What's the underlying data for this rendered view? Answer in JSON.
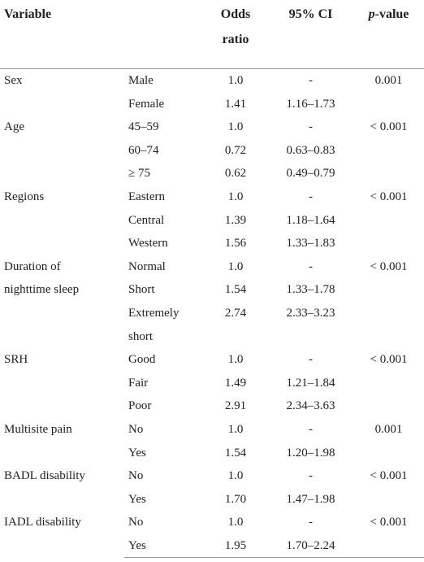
{
  "header": {
    "variable": "Variable",
    "odds_ratio": "Odds ratio",
    "ci": "95% CI",
    "p_value": "p-value"
  },
  "groups": [
    {
      "variable": "Sex",
      "rows": [
        {
          "level": "Male",
          "odds_ratio": "1.0",
          "ci": "-",
          "p": "0.001"
        },
        {
          "level": "Female",
          "odds_ratio": "1.41",
          "ci": "1.16–1.73"
        }
      ]
    },
    {
      "variable": "Age",
      "rows": [
        {
          "level": "45–59",
          "odds_ratio": "1.0",
          "ci": "-",
          "p": "< 0.001"
        },
        {
          "level": "60–74",
          "odds_ratio": "0.72",
          "ci": "0.63–0.83"
        },
        {
          "level": "≥ 75",
          "odds_ratio": "0.62",
          "ci": "0.49–0.79"
        }
      ]
    },
    {
      "variable": "Regions",
      "rows": [
        {
          "level": "Eastern",
          "odds_ratio": "1.0",
          "ci": "-",
          "p": "< 0.001"
        },
        {
          "level": "Central",
          "odds_ratio": "1.39",
          "ci": "1.18–1.64"
        },
        {
          "level": "Western",
          "odds_ratio": "1.56",
          "ci": "1.33–1.83"
        }
      ]
    },
    {
      "variable": "Duration of nighttime sleep",
      "rows": [
        {
          "level": "Normal",
          "odds_ratio": "1.0",
          "ci": "-",
          "p": "< 0.001"
        },
        {
          "level": "Short",
          "odds_ratio": "1.54",
          "ci": "1.33–1.78"
        },
        {
          "level": "Extremely short",
          "odds_ratio": "2.74",
          "ci": "2.33–3.23"
        }
      ]
    },
    {
      "variable": "SRH",
      "rows": [
        {
          "level": "Good",
          "odds_ratio": "1.0",
          "ci": "-",
          "p": "< 0.001"
        },
        {
          "level": "Fair",
          "odds_ratio": "1.49",
          "ci": "1.21–1.84"
        },
        {
          "level": "Poor",
          "odds_ratio": "2.91",
          "ci": "2.34–3.63"
        }
      ]
    },
    {
      "variable": "Multisite pain",
      "rows": [
        {
          "level": "No",
          "odds_ratio": "1.0",
          "ci": "-",
          "p": "0.001"
        },
        {
          "level": "Yes",
          "odds_ratio": "1.54",
          "ci": "1.20–1.98"
        }
      ]
    },
    {
      "variable": "BADL disability",
      "rows": [
        {
          "level": "No",
          "odds_ratio": "1.0",
          "ci": "-",
          "p": "< 0.001"
        },
        {
          "level": "Yes",
          "odds_ratio": "1.70",
          "ci": "1.47–1.98"
        }
      ]
    },
    {
      "variable": "IADL disability",
      "rows": [
        {
          "level": "No",
          "odds_ratio": "1.0",
          "ci": "-",
          "p": "< 0.001"
        },
        {
          "level": "Yes",
          "odds_ratio": "1.95",
          "ci": "1.70–2.24"
        }
      ]
    }
  ]
}
